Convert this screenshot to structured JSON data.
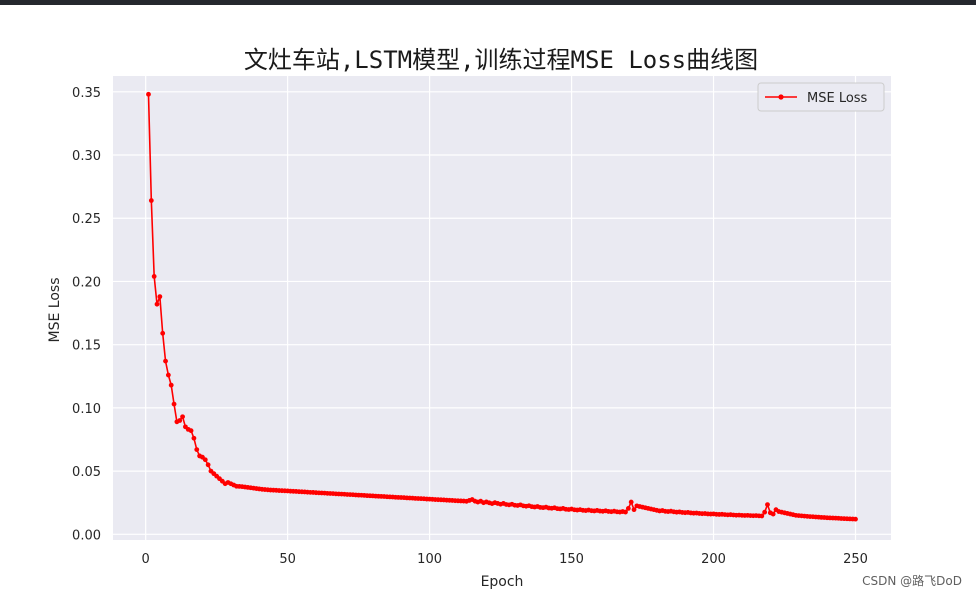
{
  "watermark": "CSDN @路飞DoD",
  "chart_data": {
    "type": "line",
    "title": "文灶车站,LSTM模型,训练过程MSE Loss曲线图",
    "xlabel": "Epoch",
    "ylabel": "MSE Loss",
    "xlim": [
      -11.5,
      262.5
    ],
    "ylim": [
      -0.0045,
      0.3625
    ],
    "xticks": [
      0,
      50,
      100,
      150,
      200,
      250
    ],
    "xtick_labels": [
      "0",
      "50",
      "100",
      "150",
      "200",
      "250"
    ],
    "yticks": [
      0.0,
      0.05,
      0.1,
      0.15,
      0.2,
      0.25,
      0.3,
      0.35
    ],
    "ytick_labels": [
      "0.00",
      "0.05",
      "0.10",
      "0.15",
      "0.20",
      "0.25",
      "0.30",
      "0.35"
    ],
    "grid": true,
    "legend_position": "top-right",
    "series": [
      {
        "name": "MSE Loss",
        "color": "#ff0000",
        "marker": "circle",
        "x_start": 1,
        "x_step": 1,
        "values": [
          0.348,
          0.264,
          0.204,
          0.182,
          0.188,
          0.159,
          0.137,
          0.126,
          0.118,
          0.103,
          0.089,
          0.09,
          0.093,
          0.085,
          0.083,
          0.082,
          0.076,
          0.067,
          0.062,
          0.061,
          0.059,
          0.055,
          0.05,
          0.048,
          0.046,
          0.044,
          0.042,
          0.04,
          0.041,
          0.04,
          0.039,
          0.038,
          0.0379,
          0.0377,
          0.0374,
          0.0371,
          0.0368,
          0.0365,
          0.0362,
          0.0359,
          0.0356,
          0.0354,
          0.0352,
          0.035,
          0.0349,
          0.0348,
          0.0346,
          0.0345,
          0.0344,
          0.0343,
          0.0341,
          0.034,
          0.0339,
          0.0337,
          0.0336,
          0.0335,
          0.0333,
          0.0332,
          0.0331,
          0.0329,
          0.0328,
          0.0327,
          0.0326,
          0.0324,
          0.0323,
          0.0322,
          0.032,
          0.0319,
          0.0318,
          0.0317,
          0.0315,
          0.0314,
          0.0313,
          0.0311,
          0.031,
          0.0309,
          0.0308,
          0.0306,
          0.0305,
          0.0304,
          0.0302,
          0.0301,
          0.03,
          0.0299,
          0.0297,
          0.0296,
          0.0295,
          0.0293,
          0.0292,
          0.0291,
          0.029,
          0.0288,
          0.0287,
          0.0286,
          0.0284,
          0.0283,
          0.0282,
          0.0281,
          0.0279,
          0.0278,
          0.0277,
          0.0275,
          0.0274,
          0.0273,
          0.0272,
          0.027,
          0.0269,
          0.0268,
          0.0266,
          0.0265,
          0.0264,
          0.0263,
          0.0261,
          0.0268,
          0.0275,
          0.0262,
          0.0255,
          0.0262,
          0.025,
          0.0256,
          0.0249,
          0.0243,
          0.025,
          0.0244,
          0.0238,
          0.0244,
          0.0236,
          0.0233,
          0.0238,
          0.023,
          0.0228,
          0.0233,
          0.0225,
          0.0222,
          0.0226,
          0.0219,
          0.0216,
          0.022,
          0.0213,
          0.0211,
          0.0215,
          0.0208,
          0.0206,
          0.021,
          0.0203,
          0.0201,
          0.0205,
          0.0198,
          0.0196,
          0.02,
          0.0194,
          0.0192,
          0.0195,
          0.019,
          0.0188,
          0.0192,
          0.0187,
          0.0185,
          0.0189,
          0.0184,
          0.0182,
          0.0186,
          0.0181,
          0.0179,
          0.0183,
          0.0178,
          0.0176,
          0.018,
          0.0176,
          0.0205,
          0.0255,
          0.0195,
          0.0225,
          0.022,
          0.0215,
          0.021,
          0.0205,
          0.02,
          0.0195,
          0.019,
          0.0185,
          0.0188,
          0.0182,
          0.018,
          0.0183,
          0.0178,
          0.0175,
          0.0177,
          0.0173,
          0.0171,
          0.0173,
          0.0169,
          0.0167,
          0.0168,
          0.0165,
          0.0163,
          0.0164,
          0.0161,
          0.016,
          0.0161,
          0.0158,
          0.0157,
          0.0158,
          0.0156,
          0.0154,
          0.0155,
          0.0153,
          0.0151,
          0.0152,
          0.015,
          0.0149,
          0.015,
          0.0148,
          0.0147,
          0.0148,
          0.0146,
          0.0145,
          0.0175,
          0.0235,
          0.017,
          0.016,
          0.0195,
          0.018,
          0.0175,
          0.017,
          0.0165,
          0.016,
          0.0155,
          0.015,
          0.0148,
          0.0146,
          0.0144,
          0.0142,
          0.014,
          0.0139,
          0.0137,
          0.0136,
          0.0134,
          0.0133,
          0.0131,
          0.013,
          0.0129,
          0.0128,
          0.0127,
          0.0125,
          0.0124,
          0.0123,
          0.0122,
          0.0121,
          0.012
        ]
      }
    ]
  }
}
